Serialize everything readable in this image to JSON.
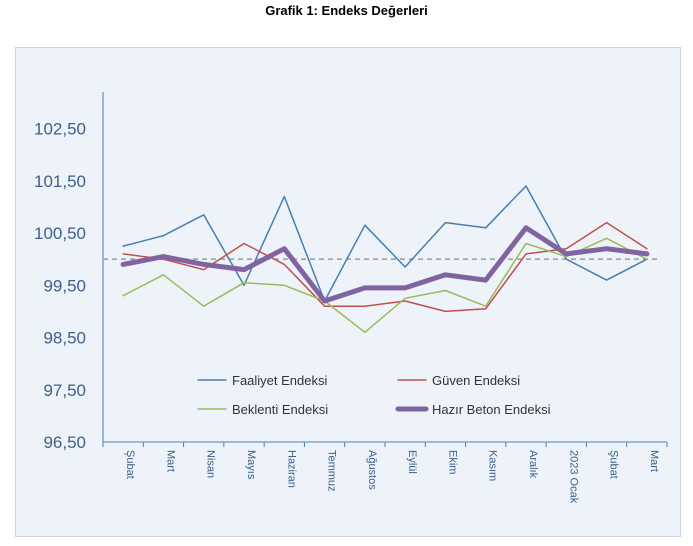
{
  "chart_data": {
    "type": "line",
    "title": "Grafik 1: Endeks Değerleri",
    "xlabel": "",
    "ylabel": "",
    "categories": [
      "Şubat",
      "Mart",
      "Nisan",
      "Mayıs",
      "Haziran",
      "Temmuz",
      "Ağustos",
      "Eylül",
      "Ekim",
      "Kasım",
      "Aralık",
      "2023 Ocak",
      "Şubat",
      "Mart"
    ],
    "yticks": [
      "102,50",
      "101,50",
      "100,50",
      "99,50",
      "98,50",
      "97,50",
      "96,50"
    ],
    "ylim": [
      96.5,
      103.2
    ],
    "grid": false,
    "reference_line": 100,
    "legend_placement": "bottom-center",
    "series": [
      {
        "name": "Faaliyet Endeksi",
        "color": "#4a7eb0",
        "width": 1.5,
        "values": [
          100.25,
          100.45,
          100.85,
          99.5,
          101.2,
          99.2,
          100.65,
          99.85,
          100.7,
          100.6,
          101.4,
          100.0,
          99.6,
          100.0
        ]
      },
      {
        "name": "Güven Endeksi",
        "color": "#c0504d",
        "width": 1.5,
        "values": [
          100.1,
          100.0,
          99.8,
          100.3,
          99.9,
          99.1,
          99.1,
          99.2,
          99.0,
          99.05,
          100.1,
          100.2,
          100.7,
          100.2
        ]
      },
      {
        "name": "Beklenti Endeksi",
        "color": "#9bbb59",
        "width": 1.5,
        "values": [
          99.3,
          99.7,
          99.1,
          99.55,
          99.5,
          99.2,
          98.6,
          99.25,
          99.4,
          99.1,
          100.3,
          100.05,
          100.4,
          100.0
        ]
      },
      {
        "name": "Hazır Beton Endeksi",
        "color": "#8064a2",
        "width": 5,
        "values": [
          99.9,
          100.05,
          99.9,
          99.8,
          100.2,
          99.2,
          99.45,
          99.45,
          99.7,
          99.6,
          100.6,
          100.1,
          100.2,
          100.1
        ]
      }
    ]
  }
}
